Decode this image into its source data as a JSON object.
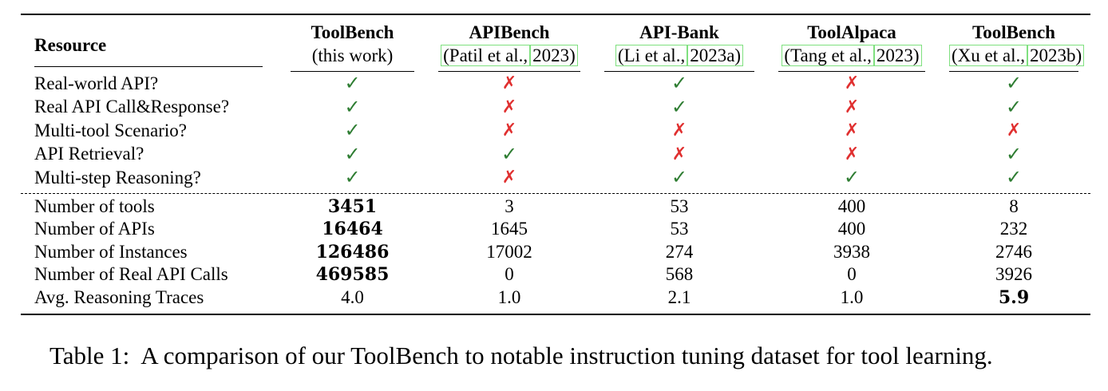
{
  "table": {
    "header_resource": "Resource",
    "columns": [
      {
        "name": "ToolBench",
        "sub": "(this work)",
        "cite_author": "",
        "cite_year": ""
      },
      {
        "name": "APIBench",
        "sub": "",
        "cite_author": "(Patil et al.,",
        "cite_year": "2023)"
      },
      {
        "name": "API-Bank",
        "sub": "",
        "cite_author": "(Li et al.,",
        "cite_year": "2023a)"
      },
      {
        "name": "ToolAlpaca",
        "sub": "",
        "cite_author": "(Tang et al.,",
        "cite_year": "2023)"
      },
      {
        "name": "ToolBench",
        "sub": "",
        "cite_author": "(Xu et al.,",
        "cite_year": "2023b)"
      }
    ],
    "feature_rows": [
      {
        "label": "Real-world API?",
        "values": [
          "check",
          "cross",
          "check",
          "cross",
          "check"
        ]
      },
      {
        "label": "Real API Call&Response?",
        "values": [
          "check",
          "cross",
          "check",
          "cross",
          "check"
        ]
      },
      {
        "label": "Multi-tool Scenario?",
        "values": [
          "check",
          "cross",
          "cross",
          "cross",
          "cross"
        ]
      },
      {
        "label": "API Retrieval?",
        "values": [
          "check",
          "check",
          "cross",
          "cross",
          "check"
        ]
      },
      {
        "label": "Multi-step Reasoning?",
        "values": [
          "check",
          "cross",
          "check",
          "check",
          "check"
        ]
      }
    ],
    "numeric_rows": [
      {
        "label": "Number of tools",
        "values": [
          "3451",
          "3",
          "53",
          "400",
          "8"
        ],
        "bold": [
          true,
          false,
          false,
          false,
          false
        ]
      },
      {
        "label": "Number of APIs",
        "values": [
          "16464",
          "1645",
          "53",
          "400",
          "232"
        ],
        "bold": [
          true,
          false,
          false,
          false,
          false
        ]
      },
      {
        "label": "Number of Instances",
        "values": [
          "126486",
          "17002",
          "274",
          "3938",
          "2746"
        ],
        "bold": [
          true,
          false,
          false,
          false,
          false
        ]
      },
      {
        "label": "Number of Real API Calls",
        "values": [
          "469585",
          "0",
          "568",
          "0",
          "3926"
        ],
        "bold": [
          true,
          false,
          false,
          false,
          false
        ]
      },
      {
        "label": "Avg. Reasoning Traces",
        "values": [
          "4.0",
          "1.0",
          "2.1",
          "1.0",
          "5.9"
        ],
        "bold": [
          false,
          false,
          false,
          false,
          true
        ]
      }
    ],
    "symbols": {
      "check": "✓",
      "cross": "✗"
    },
    "colors": {
      "check": "#2e7d32",
      "cross": "#e03030",
      "cite_box": "#7fe07f"
    }
  },
  "caption": {
    "label": "Table 1:",
    "text": "A comparison of our ToolBench to notable instruction tuning dataset for tool learning."
  }
}
